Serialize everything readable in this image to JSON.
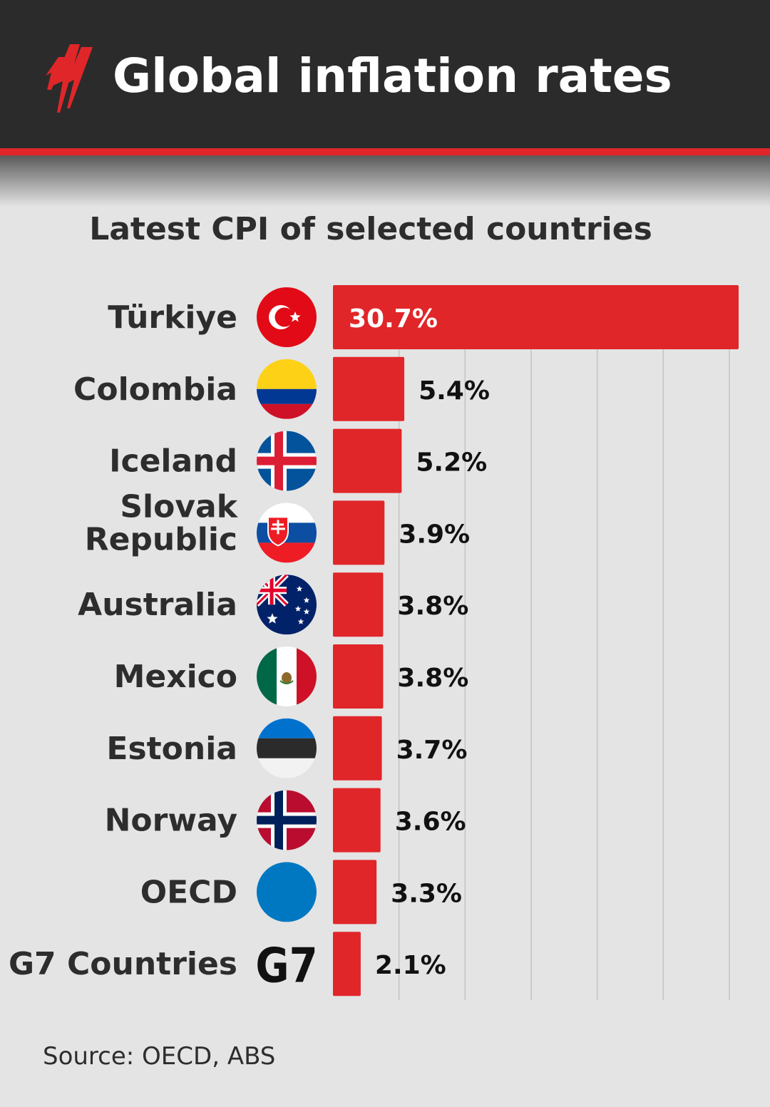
{
  "header": {
    "title": "Global inflation rates",
    "brand_color": "#e1262a",
    "background": "#2b2b2b"
  },
  "source": "Source: OECD, ABS",
  "chart_data": {
    "type": "bar",
    "orientation": "horizontal",
    "title": "Latest CPI of selected countries",
    "categories": [
      "Türkiye",
      "Colombia",
      "Iceland",
      "Slovak Republic",
      "Australia",
      "Mexico",
      "Estonia",
      "Norway",
      "OECD",
      "G7 Countries"
    ],
    "category_lines": [
      [
        "Türkiye"
      ],
      [
        "Colombia"
      ],
      [
        "Iceland"
      ],
      [
        "Slovak",
        "Republic"
      ],
      [
        "Australia"
      ],
      [
        "Mexico"
      ],
      [
        "Estonia"
      ],
      [
        "Norway"
      ],
      [
        "OECD"
      ],
      [
        "G7 Countries"
      ]
    ],
    "values": [
      30.7,
      5.4,
      5.2,
      3.9,
      3.8,
      3.8,
      3.7,
      3.6,
      3.3,
      2.1
    ],
    "value_labels": [
      "30.7%",
      "5.4%",
      "5.2%",
      "3.9%",
      "3.8%",
      "3.8%",
      "3.7%",
      "3.6%",
      "3.3%",
      "2.1%"
    ],
    "icons": [
      "turkey-flag",
      "colombia-flag",
      "iceland-flag",
      "slovakia-flag",
      "australia-flag",
      "mexico-flag",
      "estonia-flag",
      "norway-flag",
      "oecd-icon",
      "g7-icon"
    ],
    "g7_icon_text": "G7",
    "xlim": [
      0,
      30.7
    ],
    "grid": true,
    "bar_color": "#e1262a"
  }
}
